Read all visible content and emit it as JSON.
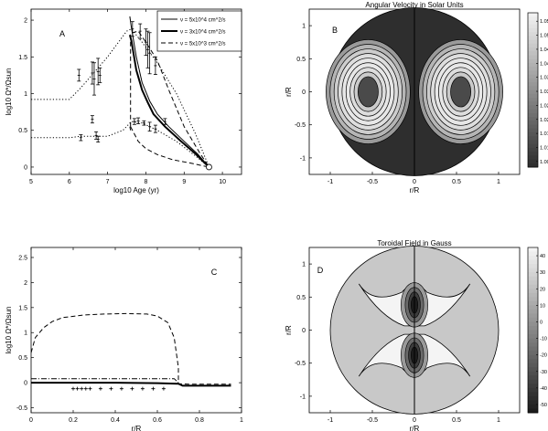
{
  "panels": [
    {
      "id": "A",
      "panel_label": "A",
      "type": "line",
      "title": "",
      "xlabel": "log10 Age (yr)",
      "ylabel": "log10 Ω*/Ωsun",
      "xlim": [
        5,
        10.5
      ],
      "ylim": [
        -0.1,
        2.15
      ],
      "xticks": [
        "5",
        "6",
        "7",
        "8",
        "9",
        "10"
      ],
      "yticks": [
        "0",
        "0.5",
        "1",
        "1.5",
        "2"
      ],
      "legend_position": "top-right",
      "legend": [
        "ν = 5x10^4 cm^2/s",
        "ν = 3x10^4 cm^2/s",
        "ν = 5x10^3 cm^2/s"
      ],
      "series": [
        {
          "name": "ν = 5x10^4 cm^2/s",
          "style": "solid-thin",
          "x": [
            7.58,
            7.62,
            7.75,
            7.9,
            8.1,
            8.3,
            8.6,
            9.0,
            9.35,
            9.65
          ],
          "y": [
            2.05,
            1.9,
            1.5,
            1.15,
            0.9,
            0.72,
            0.55,
            0.35,
            0.18,
            0.0
          ]
        },
        {
          "name": "ν = 3x10^4 cm^2/s",
          "style": "solid-thick",
          "x": [
            7.58,
            7.62,
            7.75,
            7.9,
            8.05,
            8.2,
            8.5,
            8.9,
            9.3,
            9.65
          ],
          "y": [
            1.8,
            1.72,
            1.32,
            1.05,
            0.88,
            0.72,
            0.55,
            0.36,
            0.18,
            0.0
          ]
        },
        {
          "name": "ν = 5x10^3 cm^2/s",
          "style": "dashed",
          "x": [
            7.58,
            7.6,
            7.6,
            7.8,
            8.0,
            8.3,
            8.6,
            9.0,
            9.4,
            9.65
          ],
          "y": [
            0.55,
            0.5,
            1.82,
            1.85,
            1.7,
            1.45,
            1.05,
            0.55,
            0.2,
            0.0
          ]
        },
        {
          "name": "",
          "style": "dotted",
          "x": [
            5.0,
            6.0,
            6.3,
            7.0,
            7.5,
            7.62,
            7.9,
            8.3,
            8.8,
            9.3,
            9.65
          ],
          "y": [
            0.92,
            0.92,
            1.08,
            1.5,
            1.85,
            1.88,
            1.7,
            1.42,
            1.0,
            0.45,
            0.0
          ]
        },
        {
          "name": "",
          "style": "dotted",
          "x": [
            5.0,
            6.0,
            6.3,
            7.0,
            7.4,
            7.62,
            7.9,
            8.3,
            8.8,
            9.3,
            9.65
          ],
          "y": [
            0.4,
            0.4,
            0.42,
            0.42,
            0.5,
            0.62,
            0.6,
            0.5,
            0.35,
            0.15,
            0.0
          ]
        },
        {
          "name": "",
          "style": "dashed",
          "x": [
            7.6,
            7.8,
            8.0,
            8.3,
            8.7,
            9.2,
            9.65
          ],
          "y": [
            0.55,
            0.35,
            0.25,
            0.17,
            0.1,
            0.05,
            0.0
          ]
        }
      ],
      "error_points": [
        {
          "x": 6.25,
          "y": 1.25,
          "err": 0.08
        },
        {
          "x": 6.6,
          "y": 1.28,
          "err": 0.15
        },
        {
          "x": 6.65,
          "y": 1.2,
          "err": 0.22
        },
        {
          "x": 6.75,
          "y": 1.3,
          "err": 0.18
        },
        {
          "x": 6.8,
          "y": 1.25,
          "err": 0.1
        },
        {
          "x": 6.6,
          "y": 0.65,
          "err": 0.05
        },
        {
          "x": 6.3,
          "y": 0.4,
          "err": 0.04
        },
        {
          "x": 6.7,
          "y": 0.43,
          "err": 0.05
        },
        {
          "x": 6.75,
          "y": 0.38,
          "err": 0.04
        },
        {
          "x": 7.65,
          "y": 1.88,
          "err": 0.1
        },
        {
          "x": 7.85,
          "y": 1.85,
          "err": 0.1
        },
        {
          "x": 8.0,
          "y": 1.7,
          "err": 0.18
        },
        {
          "x": 8.05,
          "y": 1.6,
          "err": 0.25
        },
        {
          "x": 8.1,
          "y": 1.55,
          "err": 0.28
        },
        {
          "x": 8.25,
          "y": 1.38,
          "err": 0.12
        },
        {
          "x": 7.7,
          "y": 0.62,
          "err": 0.04
        },
        {
          "x": 7.8,
          "y": 0.63,
          "err": 0.04
        },
        {
          "x": 7.95,
          "y": 0.6,
          "err": 0.03
        },
        {
          "x": 8.1,
          "y": 0.55,
          "err": 0.06
        },
        {
          "x": 8.25,
          "y": 0.52,
          "err": 0.05
        },
        {
          "x": 8.5,
          "y": 0.62,
          "err": 0.04
        }
      ]
    },
    {
      "id": "B",
      "panel_label": "B",
      "type": "heatmap",
      "title": "Angular Velocity in Solar Units",
      "xlabel": "r/R",
      "ylabel": "r/R",
      "xticks": [
        "-1",
        "-0.5",
        "0",
        "0.5",
        "1"
      ],
      "yticks": [
        "-1",
        "-0.5",
        "0",
        "0.5",
        "1"
      ],
      "colorbar_ticks": [
        "1.055",
        "1.05",
        "1.045",
        "1.04",
        "1.035",
        "1.03",
        "1.025",
        "1.02",
        "1.015",
        "1.01",
        "1.005"
      ],
      "colorbar_range": [
        1.003,
        1.058
      ],
      "colors": {
        "low": "#2e2e2e",
        "high": "#f2f2f2"
      }
    },
    {
      "id": "C",
      "panel_label": "C",
      "type": "line",
      "title": "",
      "xlabel": "r/R",
      "ylabel": "log10 Ω*/Ωsun",
      "xlim": [
        0,
        1
      ],
      "ylim": [
        -0.6,
        2.7
      ],
      "xticks": [
        "0",
        "0.2",
        "0.4",
        "0.6",
        "0.8",
        "1"
      ],
      "yticks": [
        "-0.5",
        "0",
        "0.5",
        "1",
        "1.5",
        "2",
        "2.5"
      ],
      "series": [
        {
          "name": "",
          "style": "dashed",
          "x": [
            0.0,
            0.02,
            0.06,
            0.1,
            0.15,
            0.25,
            0.35,
            0.45,
            0.55,
            0.6,
            0.65,
            0.68,
            0.7,
            0.7,
            0.75,
            0.95
          ],
          "y": [
            0.6,
            0.9,
            1.1,
            1.22,
            1.3,
            1.35,
            1.37,
            1.38,
            1.37,
            1.33,
            1.2,
            0.9,
            0.3,
            -0.02,
            -0.03,
            -0.03
          ]
        },
        {
          "name": "",
          "style": "dashdot",
          "x": [
            0.0,
            0.1,
            0.3,
            0.5,
            0.68,
            0.7
          ],
          "y": [
            0.08,
            0.08,
            0.08,
            0.08,
            0.08,
            0.0
          ]
        },
        {
          "name": "",
          "style": "solid-thick",
          "x": [
            0.0,
            0.2,
            0.4,
            0.6,
            0.7,
            0.72,
            0.95
          ],
          "y": [
            0.0,
            0.0,
            0.0,
            -0.01,
            -0.02,
            -0.06,
            -0.06
          ]
        }
      ],
      "plus_points": {
        "x": [
          0.2,
          0.22,
          0.24,
          0.26,
          0.28,
          0.33,
          0.38,
          0.43,
          0.48,
          0.53,
          0.58,
          0.63
        ],
        "y": [
          -0.12,
          -0.12,
          -0.12,
          -0.12,
          -0.12,
          -0.12,
          -0.12,
          -0.12,
          -0.12,
          -0.12,
          -0.12,
          -0.12
        ]
      }
    },
    {
      "id": "D",
      "panel_label": "D",
      "type": "heatmap",
      "title": "Toroidal Field in Gauss",
      "xlabel": "r/R",
      "ylabel": "r/R",
      "xticks": [
        "-1",
        "-0.5",
        "0",
        "0.5",
        "1"
      ],
      "yticks": [
        "-1",
        "-0.5",
        "0",
        "0.5",
        "1"
      ],
      "colorbar_ticks": [
        "40",
        "30",
        "20",
        "10",
        "0",
        "-10",
        "-20",
        "-30",
        "-40",
        "-50"
      ],
      "colorbar_range": [
        -55,
        45
      ],
      "colors": {
        "low": "#1c1c1c",
        "high": "#f4f4f4",
        "background": "#c8c8c8"
      }
    }
  ]
}
